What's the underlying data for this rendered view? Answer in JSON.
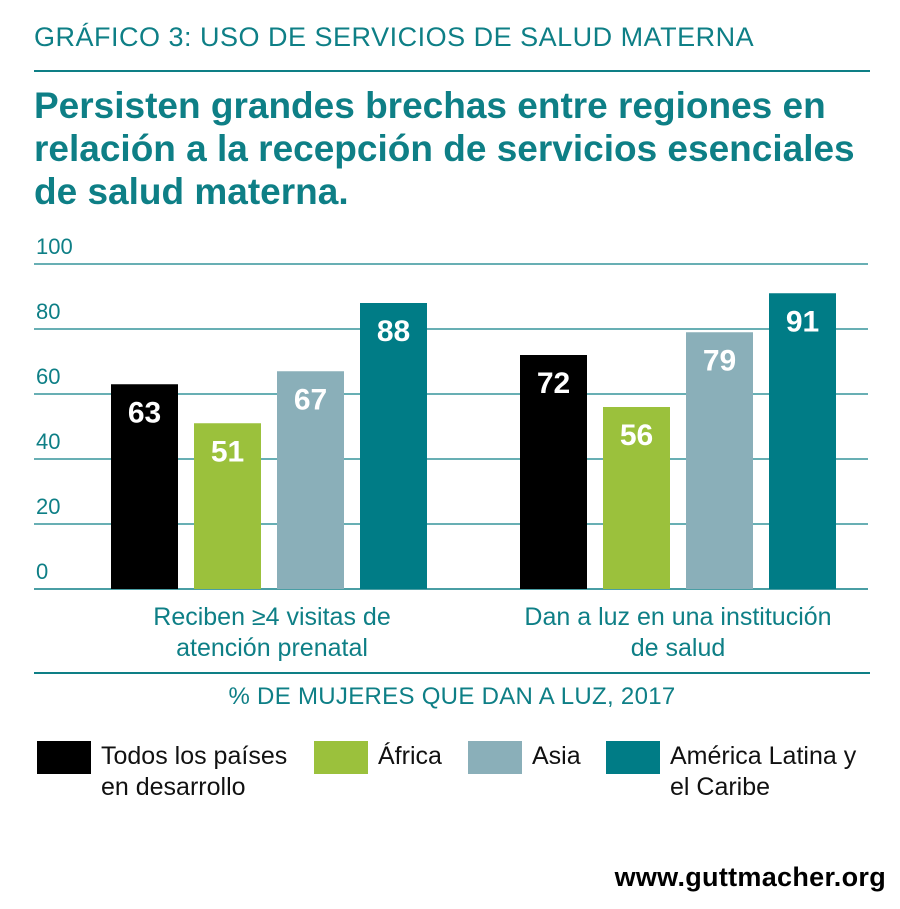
{
  "kicker": "GRÁFICO 3: USO DE SERVICIOS DE SALUD MATERNA",
  "headline": "Persisten grandes brechas entre regiones en relación a la recepción de servicios esenciales de salud materna.",
  "source_url": "www.guttmacher.org",
  "colors": {
    "accent": "#0e7f86",
    "series": [
      "#000000",
      "#9bc13c",
      "#8aafb9",
      "#007c86"
    ]
  },
  "chart_data": {
    "type": "bar",
    "title": "Persisten grandes brechas entre regiones en relación a la recepción de servicios esenciales de salud materna.",
    "xlabel": "% DE MUJERES QUE DAN A LUZ, 2017",
    "ylabel": "",
    "ylim": [
      0,
      100
    ],
    "yticks": [
      "0",
      "20",
      "40",
      "60",
      "80",
      "100"
    ],
    "grid": true,
    "legend_position": "bottom",
    "categories": [
      "Reciben ≥4 visitas de\natención prenatal",
      "Dan a luz en una\ninstitución de salud"
    ],
    "series": [
      {
        "name": "Todos los países\nen desarrollo",
        "values": [
          63,
          72
        ]
      },
      {
        "name": "África",
        "values": [
          51,
          56
        ]
      },
      {
        "name": "Asia",
        "values": [
          67,
          79
        ]
      },
      {
        "name": "América Latina y\nel Caribe",
        "values": [
          88,
          91
        ]
      }
    ]
  }
}
